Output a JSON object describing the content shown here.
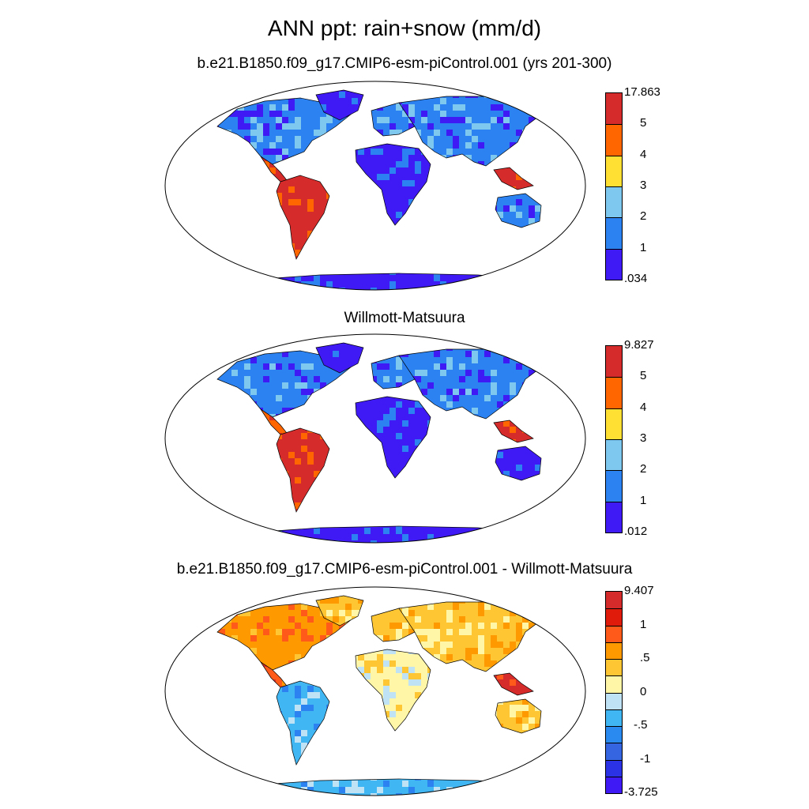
{
  "title": "ANN ppt: rain+snow (mm/d)",
  "panels": [
    {
      "subtitle": "b.e21.B1850.f09_g17.CMIP6-esm-piControl.001 (yrs 201-300)",
      "colorbar": {
        "colors": [
          "#d62b2b",
          "#ff6600",
          "#ffe033",
          "#7ec8f0",
          "#2b82f0",
          "#3f1af5"
        ],
        "labels": [
          "17.863",
          "5",
          "4",
          "3",
          "2",
          "1",
          ".034"
        ]
      },
      "palette": [
        "#3f1af5",
        "#2b82f0",
        "#7ec8f0",
        "#ffe033",
        "#ff6600",
        "#d62b2b"
      ]
    },
    {
      "subtitle": "Willmott-Matsuura",
      "colorbar": {
        "colors": [
          "#d62b2b",
          "#ff6600",
          "#ffe033",
          "#7ec8f0",
          "#2b82f0",
          "#3f1af5"
        ],
        "labels": [
          "9.827",
          "5",
          "4",
          "3",
          "2",
          "1",
          ".012"
        ]
      },
      "palette": [
        "#3f1af5",
        "#2b82f0",
        "#7ec8f0",
        "#ffe033",
        "#ff6600",
        "#d62b2b"
      ]
    },
    {
      "subtitle": "b.e21.B1850.f09_g17.CMIP6-esm-piControl.001 - Willmott-Matsuura",
      "colorbar": {
        "colors": [
          "#d62b2b",
          "#e01b0b",
          "#ff5a1a",
          "#ff9900",
          "#ffc633",
          "#fff6a8",
          "#bfe3f5",
          "#40b6f2",
          "#2a8af0",
          "#3565e0",
          "#2b32e6",
          "#3f1af5"
        ],
        "labels": [
          "9.407",
          "1",
          ".5",
          "0",
          "-.5",
          "-1",
          "-3.725"
        ]
      },
      "palette": [
        "#3f1af5",
        "#2b82f0",
        "#40b6f2",
        "#bfe3f5",
        "#fff6a8",
        "#ffc633",
        "#ff9900",
        "#ff5a1a",
        "#d62b2b"
      ]
    }
  ]
}
